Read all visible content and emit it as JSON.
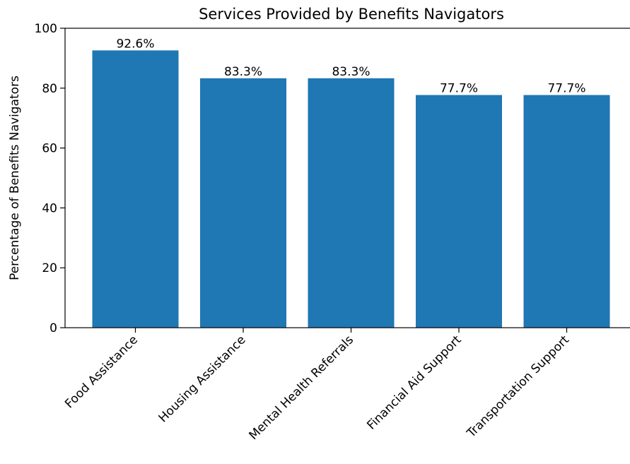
{
  "chart_data": {
    "type": "bar",
    "title": "Services Provided by Benefits Navigators",
    "xlabel": "",
    "ylabel": "Percentage of Benefits Navigators",
    "categories": [
      "Food Assistance",
      "Housing Assistance",
      "Mental Health Referrals",
      "Financial Aid Support",
      "Transportation Support"
    ],
    "values": [
      92.6,
      83.3,
      83.3,
      77.7,
      77.7
    ],
    "value_labels": [
      "92.6%",
      "83.3%",
      "83.3%",
      "77.7%",
      "77.7%"
    ],
    "ylim": [
      0,
      100
    ],
    "yticks": [
      0,
      20,
      40,
      60,
      80,
      100
    ],
    "ytick_labels": [
      "0",
      "20",
      "40",
      "60",
      "80",
      "100"
    ],
    "bar_color": "#1f77b4",
    "grid": false,
    "legend": "none"
  }
}
